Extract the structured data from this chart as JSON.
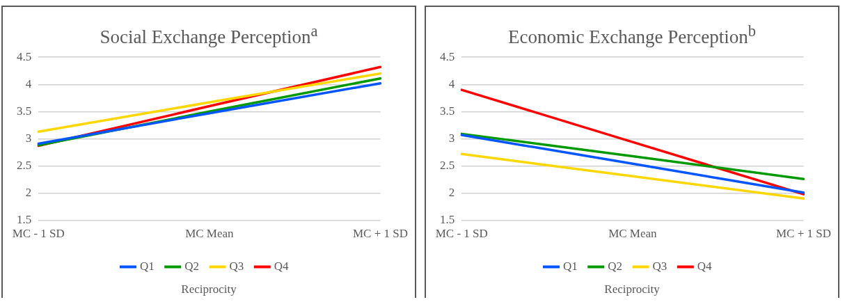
{
  "chart_data": [
    {
      "type": "line",
      "title": "Social Exchange Perception$^{a}$",
      "xlabel": "Reciprocity",
      "categories": [
        "MC - 1 SD",
        "MC Mean",
        "MC + 1 SD"
      ],
      "series": [
        {
          "name": "Q1",
          "color": "#0055ff",
          "values": [
            2.91,
            3.47,
            4.02
          ]
        },
        {
          "name": "Q2",
          "color": "#009900",
          "values": [
            2.88,
            3.5,
            4.11
          ]
        },
        {
          "name": "Q3",
          "color": "#ffd700",
          "values": [
            3.13,
            3.67,
            4.2
          ]
        },
        {
          "name": "Q4",
          "color": "#ff0000",
          "values": [
            2.87,
            3.6,
            4.32
          ]
        }
      ],
      "ylim": [
        1.5,
        4.5
      ],
      "yticks": [
        1.5,
        2,
        2.5,
        3,
        3.5,
        4,
        4.5
      ],
      "grid": "y",
      "legend": "bottom",
      "marker": "none",
      "line_style": "solid"
    },
    {
      "type": "line",
      "title": "Economic Exchange Perception$^{b}$",
      "xlabel": "Reciprocity",
      "categories": [
        "MC - 1 SD",
        "MC Mean",
        "MC + 1 SD"
      ],
      "series": [
        {
          "name": "Q1",
          "color": "#0055ff",
          "values": [
            3.07,
            2.54,
            2.01
          ]
        },
        {
          "name": "Q2",
          "color": "#009900",
          "values": [
            3.09,
            2.68,
            2.26
          ]
        },
        {
          "name": "Q3",
          "color": "#ffd700",
          "values": [
            2.72,
            2.31,
            1.9
          ]
        },
        {
          "name": "Q4",
          "color": "#ff0000",
          "values": [
            3.9,
            2.94,
            1.98
          ]
        }
      ],
      "ylim": [
        1.5,
        4.5
      ],
      "yticks": [
        1.5,
        2,
        2.5,
        3,
        3.5,
        4,
        4.5
      ],
      "grid": "y",
      "legend": "bottom",
      "marker": "none",
      "line_style": "solid"
    }
  ]
}
